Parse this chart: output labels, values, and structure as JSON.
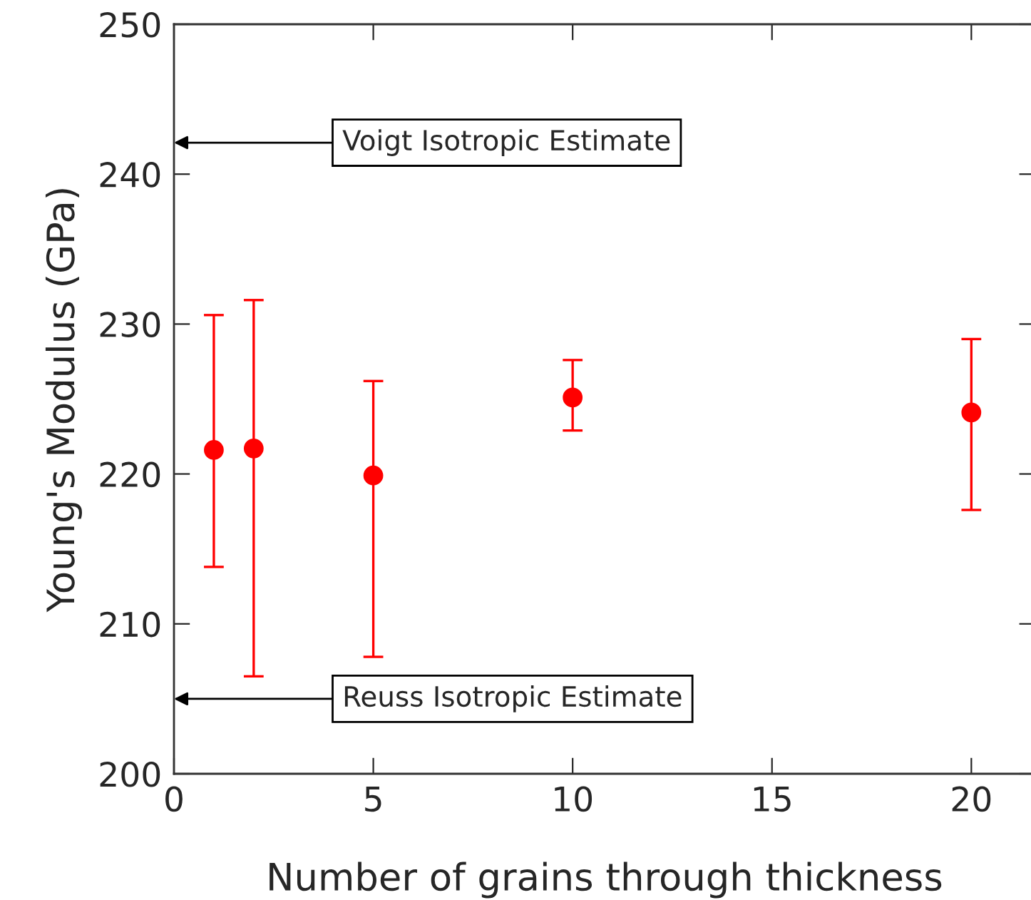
{
  "chart_data": {
    "type": "scatter",
    "xlabel": "Number of grains through thickness",
    "ylabel": "Young's Modulus (GPa)",
    "x": [
      1,
      2,
      5,
      10,
      20
    ],
    "series": [
      {
        "color": "#ff0000",
        "values": [
          221.6,
          221.7,
          219.9,
          225.1,
          224.1
        ],
        "errors": [
          [
            213.8,
            230.6
          ],
          [
            206.5,
            231.6
          ],
          [
            207.8,
            226.2
          ],
          [
            222.9,
            227.6
          ],
          [
            217.6,
            229.0
          ]
        ]
      }
    ],
    "marker": "circle",
    "grid": false,
    "xlim": [
      0,
      21.6
    ],
    "xticks": [
      0,
      5,
      10,
      15,
      20
    ],
    "ylim": [
      200,
      250
    ],
    "yticks": [
      200,
      210,
      220,
      230,
      240,
      250
    ],
    "annotations": [
      "Voigt Isotropic Estimate",
      "Reuss Isotropic Estimate"
    ]
  }
}
